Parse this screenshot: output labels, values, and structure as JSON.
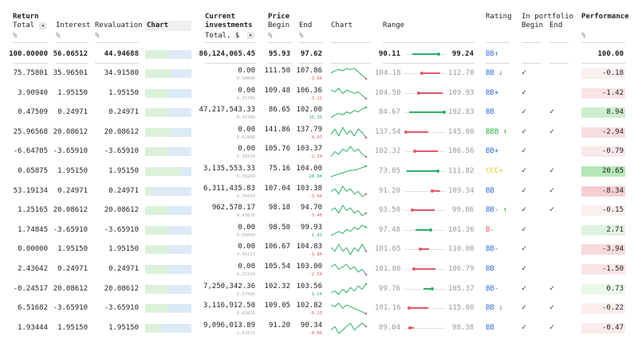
{
  "headers": {
    "return": "Return",
    "total": "Total",
    "interest": "Interest",
    "revaluation": "Revaluation",
    "chart": "Chart",
    "current": "Current",
    "investments": "investments",
    "total_usd": "Total, $",
    "price": "Price",
    "begin": "Begin",
    "end": "End",
    "chart2": "Chart",
    "range": "Range",
    "rating": "Rating",
    "in_portfolio": "In portfolio",
    "portfolio_begin": "Begin",
    "portfolio_end": "End",
    "performance": "Performance",
    "pct": "%",
    "left_arrow": "◂",
    "right_arrow": "▸"
  },
  "totals": {
    "total": "100.00000",
    "interest": "56.06512",
    "revaluation": "44.94688",
    "bar_fill": 0.5,
    "investments": "86,124,065.45",
    "price_begin": "95.93",
    "price_end": "97.62",
    "range_low": "90.11",
    "range_high": "99.24",
    "range_lo_val": 90.11,
    "range_hi_val": 99.24,
    "range_cur": 97.62,
    "rating": "BB",
    "rating_arrow": "↑",
    "performance": "100.00"
  },
  "rows": [
    {
      "total": "75.75801",
      "interest": "35.96501",
      "revaluation": "34.91580",
      "bar_fill": 0.55,
      "investments": "0.00",
      "inv_sub": "0.00000",
      "price_begin": "111.50",
      "price_end": "107.86",
      "change": "-3.64",
      "change_sign": "neg",
      "spark": [
        6,
        4,
        3,
        4,
        2,
        3,
        2,
        5,
        8,
        11
      ],
      "range_low": "104.18",
      "range_high": "112.70",
      "lo": 104.18,
      "hi": 112.7,
      "cur": 107.86,
      "rating": "BB",
      "rating_arrow": "↓",
      "rating_color": "#3b6fd6",
      "arrow_color": "#e05a6a",
      "pbegin": true,
      "pend": false,
      "perf": "-0.18",
      "perf_val": -0.18
    },
    {
      "total": "3.90940",
      "interest": "1.95150",
      "revaluation": "1.95150",
      "bar_fill": 0.5,
      "investments": "0.00",
      "inv_sub": "0.35789",
      "price_begin": "109.48",
      "price_end": "106.36",
      "change": "-3.12",
      "change_sign": "neg",
      "spark": [
        5,
        6,
        4,
        7,
        5,
        6,
        7,
        6,
        8,
        10
      ],
      "range_low": "104.50",
      "range_high": "109.93",
      "lo": 104.5,
      "hi": 109.93,
      "cur": 106.36,
      "rating": "BB+",
      "rating_arrow": "",
      "rating_color": "#3b6fd6",
      "arrow_color": "",
      "pbegin": true,
      "pend": false,
      "perf": "-1.42",
      "perf_val": -1.42
    },
    {
      "total": "0.47509",
      "interest": "0.24971",
      "revaluation": "0.24971",
      "bar_fill": 0.5,
      "investments": "47,217,543.33",
      "inv_sub": "0.93388",
      "price_begin": "86.65",
      "price_end": "102.00",
      "change": "15.35",
      "change_sign": "pos",
      "spark": [
        8,
        6,
        5,
        6,
        4,
        5,
        3,
        4,
        2,
        1
      ],
      "range_low": "84.67",
      "range_high": "102.83",
      "lo": 84.67,
      "hi": 102.83,
      "cur": 102.0,
      "rating": "BB",
      "rating_arrow": "",
      "rating_color": "#3b6fd6",
      "arrow_color": "",
      "pbegin": true,
      "pend": true,
      "perf": "8.94",
      "perf_val": 8.94
    },
    {
      "total": "25.96568",
      "interest": "20.08612",
      "revaluation": "20.08612",
      "bar_fill": 0.55,
      "investments": "0.00",
      "inv_sub": "0.62488",
      "price_begin": "141.86",
      "price_end": "137.79",
      "change": "-4.07",
      "change_sign": "neg",
      "spark": [
        6,
        3,
        7,
        2,
        6,
        4,
        7,
        3,
        5,
        8
      ],
      "range_low": "137.54",
      "range_high": "145.00",
      "lo": 137.54,
      "hi": 145.0,
      "cur": 137.79,
      "rating": "BBB",
      "rating_arrow": "↑",
      "rating_color": "#2fae3a",
      "arrow_color": "#2fae3a",
      "pbegin": true,
      "pend": true,
      "perf": "-2.94",
      "perf_val": -2.94
    },
    {
      "total": "-6.64705",
      "interest": "-3.65910",
      "revaluation": "-3.65910",
      "bar_fill": 0.5,
      "investments": "0.00",
      "inv_sub": "5.38729",
      "price_begin": "105.76",
      "price_end": "103.37",
      "change": "-2.39",
      "change_sign": "neg",
      "spark": [
        7,
        5,
        6,
        4,
        5,
        3,
        5,
        4,
        6,
        7
      ],
      "range_low": "102.32",
      "range_high": "106.56",
      "lo": 102.32,
      "hi": 106.56,
      "cur": 103.37,
      "rating": "BB+",
      "rating_arrow": "",
      "rating_color": "#3b6fd6",
      "arrow_color": "",
      "pbegin": true,
      "pend": false,
      "perf": "-0.79",
      "perf_val": -0.79
    },
    {
      "total": "0.65875",
      "interest": "1.95150",
      "revaluation": "1.95150",
      "bar_fill": 0.75,
      "investments": "3,135,553.33",
      "inv_sub": "0.38240",
      "price_begin": "75.16",
      "price_end": "104.00",
      "change": "28.84",
      "change_sign": "pos",
      "spark": [
        9,
        8,
        7,
        6,
        5,
        4,
        4,
        3,
        2,
        1
      ],
      "range_low": "73.05",
      "range_high": "111.82",
      "lo": 73.05,
      "hi": 111.82,
      "cur": 104.0,
      "rating": "CCC+",
      "rating_arrow": "",
      "rating_color": "#e8c21a",
      "arrow_color": "",
      "pbegin": true,
      "pend": true,
      "perf": "20.65",
      "perf_val": 20.65
    },
    {
      "total": "53.19134",
      "interest": "0.24971",
      "revaluation": "0.24971",
      "bar_fill": 0.15,
      "investments": "6,311,435.83",
      "inv_sub": "0.35603",
      "price_begin": "107.04",
      "price_end": "103.38",
      "change": "-3.66",
      "change_sign": "neg",
      "spark": [
        5,
        4,
        6,
        3,
        5,
        4,
        6,
        5,
        7,
        6
      ],
      "range_low": "91.20",
      "range_high": "109.34",
      "lo": 91.2,
      "hi": 109.34,
      "cur": 103.38,
      "rating": "BB",
      "rating_arrow": "",
      "rating_color": "#3b6fd6",
      "arrow_color": "",
      "pbegin": true,
      "pend": true,
      "perf": "-8.34",
      "perf_val": -8.34
    },
    {
      "total": "1.25165",
      "interest": "20.08612",
      "revaluation": "20.08612",
      "bar_fill": 0.5,
      "investments": "962,578.17",
      "inv_sub": "0.43816",
      "price_begin": "98.18",
      "price_end": "94.70",
      "change": "-3.48",
      "change_sign": "neg",
      "spark": [
        6,
        5,
        7,
        4,
        6,
        5,
        7,
        6,
        8,
        7
      ],
      "range_low": "93.50",
      "range_high": "99.86",
      "lo": 93.5,
      "hi": 99.86,
      "cur": 94.7,
      "rating": "BB-",
      "rating_arrow": "↑",
      "rating_color": "#3b6fd6",
      "arrow_color": "#2fae3a",
      "pbegin": true,
      "pend": true,
      "perf": "-0.15",
      "perf_val": -0.15
    },
    {
      "total": "1.74845",
      "interest": "-3.65910",
      "revaluation": "-3.65910",
      "bar_fill": 0.5,
      "investments": "0.00",
      "inv_sub": "0.00000",
      "price_begin": "98.50",
      "price_end": "99.93",
      "change": "1.43",
      "change_sign": "pos",
      "spark": [
        8,
        7,
        6,
        7,
        5,
        6,
        4,
        5,
        3,
        4
      ],
      "range_low": "97.48",
      "range_high": "101.36",
      "lo": 97.48,
      "hi": 101.36,
      "cur": 99.93,
      "rating": "B-",
      "rating_arrow": "",
      "rating_color": "#e05a6a",
      "arrow_color": "",
      "pbegin": true,
      "pend": false,
      "perf": "2.71",
      "perf_val": 2.71
    },
    {
      "total": "0.00000",
      "interest": "1.95150",
      "revaluation": "1.95150",
      "bar_fill": 0.5,
      "investments": "0.00",
      "inv_sub": "4.46133",
      "price_begin": "106.67",
      "price_end": "104.83",
      "change": "-1.84",
      "change_sign": "neg",
      "spark": [
        5,
        6,
        4,
        6,
        5,
        7,
        5,
        6,
        4,
        6
      ],
      "range_low": "101.65",
      "range_high": "110.00",
      "lo": 101.65,
      "hi": 110.0,
      "cur": 104.83,
      "rating": "BB-",
      "rating_arrow": "",
      "rating_color": "#3b6fd6",
      "arrow_color": "",
      "pbegin": true,
      "pend": false,
      "perf": "-3.94",
      "perf_val": -3.94
    },
    {
      "total": "2.43642",
      "interest": "0.24971",
      "revaluation": "0.24971",
      "bar_fill": 0.5,
      "investments": "0.00",
      "inv_sub": "0.25214",
      "price_begin": "105.54",
      "price_end": "103.00",
      "change": "-2.54",
      "change_sign": "neg",
      "spark": [
        5,
        4,
        6,
        5,
        4,
        6,
        5,
        7,
        6,
        8
      ],
      "range_low": "101.86",
      "range_high": "106.79",
      "lo": 101.86,
      "hi": 106.79,
      "cur": 103.0,
      "rating": "BB",
      "rating_arrow": "",
      "rating_color": "#3b6fd6",
      "arrow_color": "",
      "pbegin": true,
      "pend": false,
      "perf": "-1.50",
      "perf_val": -1.5
    },
    {
      "total": "-0.24517",
      "interest": "20.08612",
      "revaluation": "20.08612",
      "bar_fill": 0.5,
      "investments": "7,250,342.36",
      "inv_sub": "1.57988",
      "price_begin": "102.32",
      "price_end": "103.56",
      "change": "1.24",
      "change_sign": "pos",
      "spark": [
        7,
        6,
        8,
        5,
        7,
        4,
        6,
        3,
        5,
        2
      ],
      "range_low": "99.76",
      "range_high": "105.37",
      "lo": 99.76,
      "hi": 105.37,
      "cur": 103.56,
      "rating": "BB-",
      "rating_arrow": "",
      "rating_color": "#3b6fd6",
      "arrow_color": "",
      "pbegin": true,
      "pend": true,
      "perf": "0.73",
      "perf_val": 0.73
    },
    {
      "total": "6.51682",
      "interest": "-3.65910",
      "revaluation": "-3.65910",
      "bar_fill": 0.5,
      "investments": "3,116,912.50",
      "inv_sub": "0.43816",
      "price_begin": "109.05",
      "price_end": "102.82",
      "change": "-6.23",
      "change_sign": "neg",
      "spark": [
        4,
        5,
        3,
        6,
        4,
        5,
        6,
        7,
        8,
        9
      ],
      "range_low": "101.16",
      "range_high": "115.00",
      "lo": 101.16,
      "hi": 115.0,
      "cur": 102.82,
      "rating": "BB",
      "rating_arrow": "↓",
      "rating_color": "#3b6fd6",
      "arrow_color": "#e05a6a",
      "pbegin": true,
      "pend": true,
      "perf": "-0.22",
      "perf_val": -0.22
    },
    {
      "total": "1.93444",
      "interest": "1.95150",
      "revaluation": "1.95150",
      "bar_fill": 0.35,
      "investments": "9,096,013.89",
      "inv_sub": "2.01672",
      "price_begin": "91.20",
      "price_end": "90.34",
      "change": "-0.86",
      "change_sign": "neg",
      "spark": [
        6,
        5,
        7,
        6,
        5,
        4,
        6,
        5,
        4,
        5
      ],
      "range_low": "89.04",
      "range_high": "98.38",
      "lo": 89.04,
      "hi": 98.38,
      "cur": 90.34,
      "rating": "BB",
      "rating_arrow": "",
      "rating_color": "#3b6fd6",
      "arrow_color": "",
      "pbegin": true,
      "pend": true,
      "perf": "-0.47",
      "perf_val": -0.47
    }
  ],
  "colors": {
    "positive": "#2fae6a",
    "negative": "#e05a6a",
    "spark": "#2fae6a",
    "rating_blue": "#3b6fd6"
  },
  "icons": {
    "check": "✓"
  }
}
